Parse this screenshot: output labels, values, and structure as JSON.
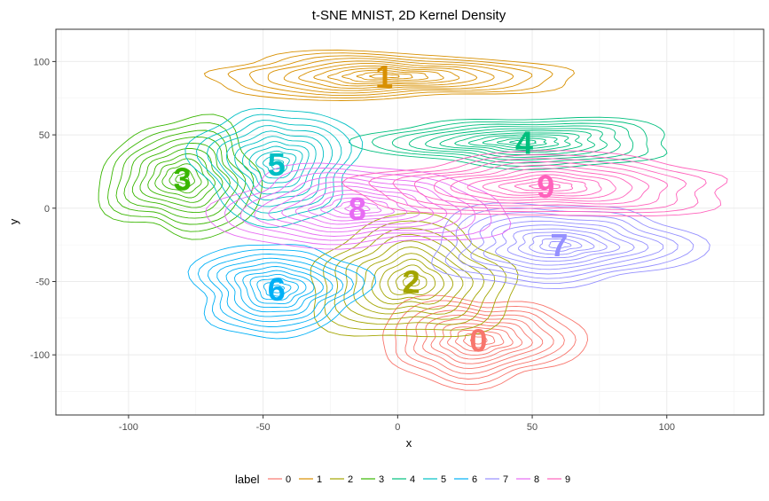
{
  "chart_data": {
    "type": "contour",
    "title": "t-SNE MNIST, 2D Kernel Density",
    "xlabel": "x",
    "ylabel": "y",
    "xlim": [
      -127,
      136
    ],
    "ylim": [
      -141,
      122
    ],
    "x_ticks": [
      -100,
      -50,
      0,
      50,
      100
    ],
    "y_ticks": [
      -100,
      -50,
      0,
      50,
      100
    ],
    "grid": true,
    "legend": {
      "title": "label",
      "position": "bottom"
    },
    "series": [
      {
        "name": "0",
        "color": "#F8766D",
        "center": [
          30,
          -90
        ],
        "rx": 38,
        "ry": 30
      },
      {
        "name": "1",
        "color": "#D89000",
        "center": [
          -5,
          90
        ],
        "rx": 68,
        "ry": 16
      },
      {
        "name": "2",
        "color": "#A3A500",
        "center": [
          5,
          -50
        ],
        "rx": 38,
        "ry": 42
      },
      {
        "name": "3",
        "color": "#39B600",
        "center": [
          -80,
          20
        ],
        "rx": 30,
        "ry": 40
      },
      {
        "name": "4",
        "color": "#00BF7D",
        "center": [
          47,
          45
        ],
        "rx": 58,
        "ry": 17
      },
      {
        "name": "5",
        "color": "#00BFC4",
        "center": [
          -45,
          30
        ],
        "rx": 30,
        "ry": 40
      },
      {
        "name": "6",
        "color": "#00B0F6",
        "center": [
          -45,
          -55
        ],
        "rx": 32,
        "ry": 32
      },
      {
        "name": "7",
        "color": "#9590FF",
        "center": [
          60,
          -25
        ],
        "rx": 50,
        "ry": 28
      },
      {
        "name": "8",
        "color": "#E76BF3",
        "center": [
          -15,
          0
        ],
        "rx": 55,
        "ry": 28
      },
      {
        "name": "9",
        "color": "#FF62BC",
        "center": [
          55,
          15
        ],
        "rx": 70,
        "ry": 22
      }
    ]
  }
}
